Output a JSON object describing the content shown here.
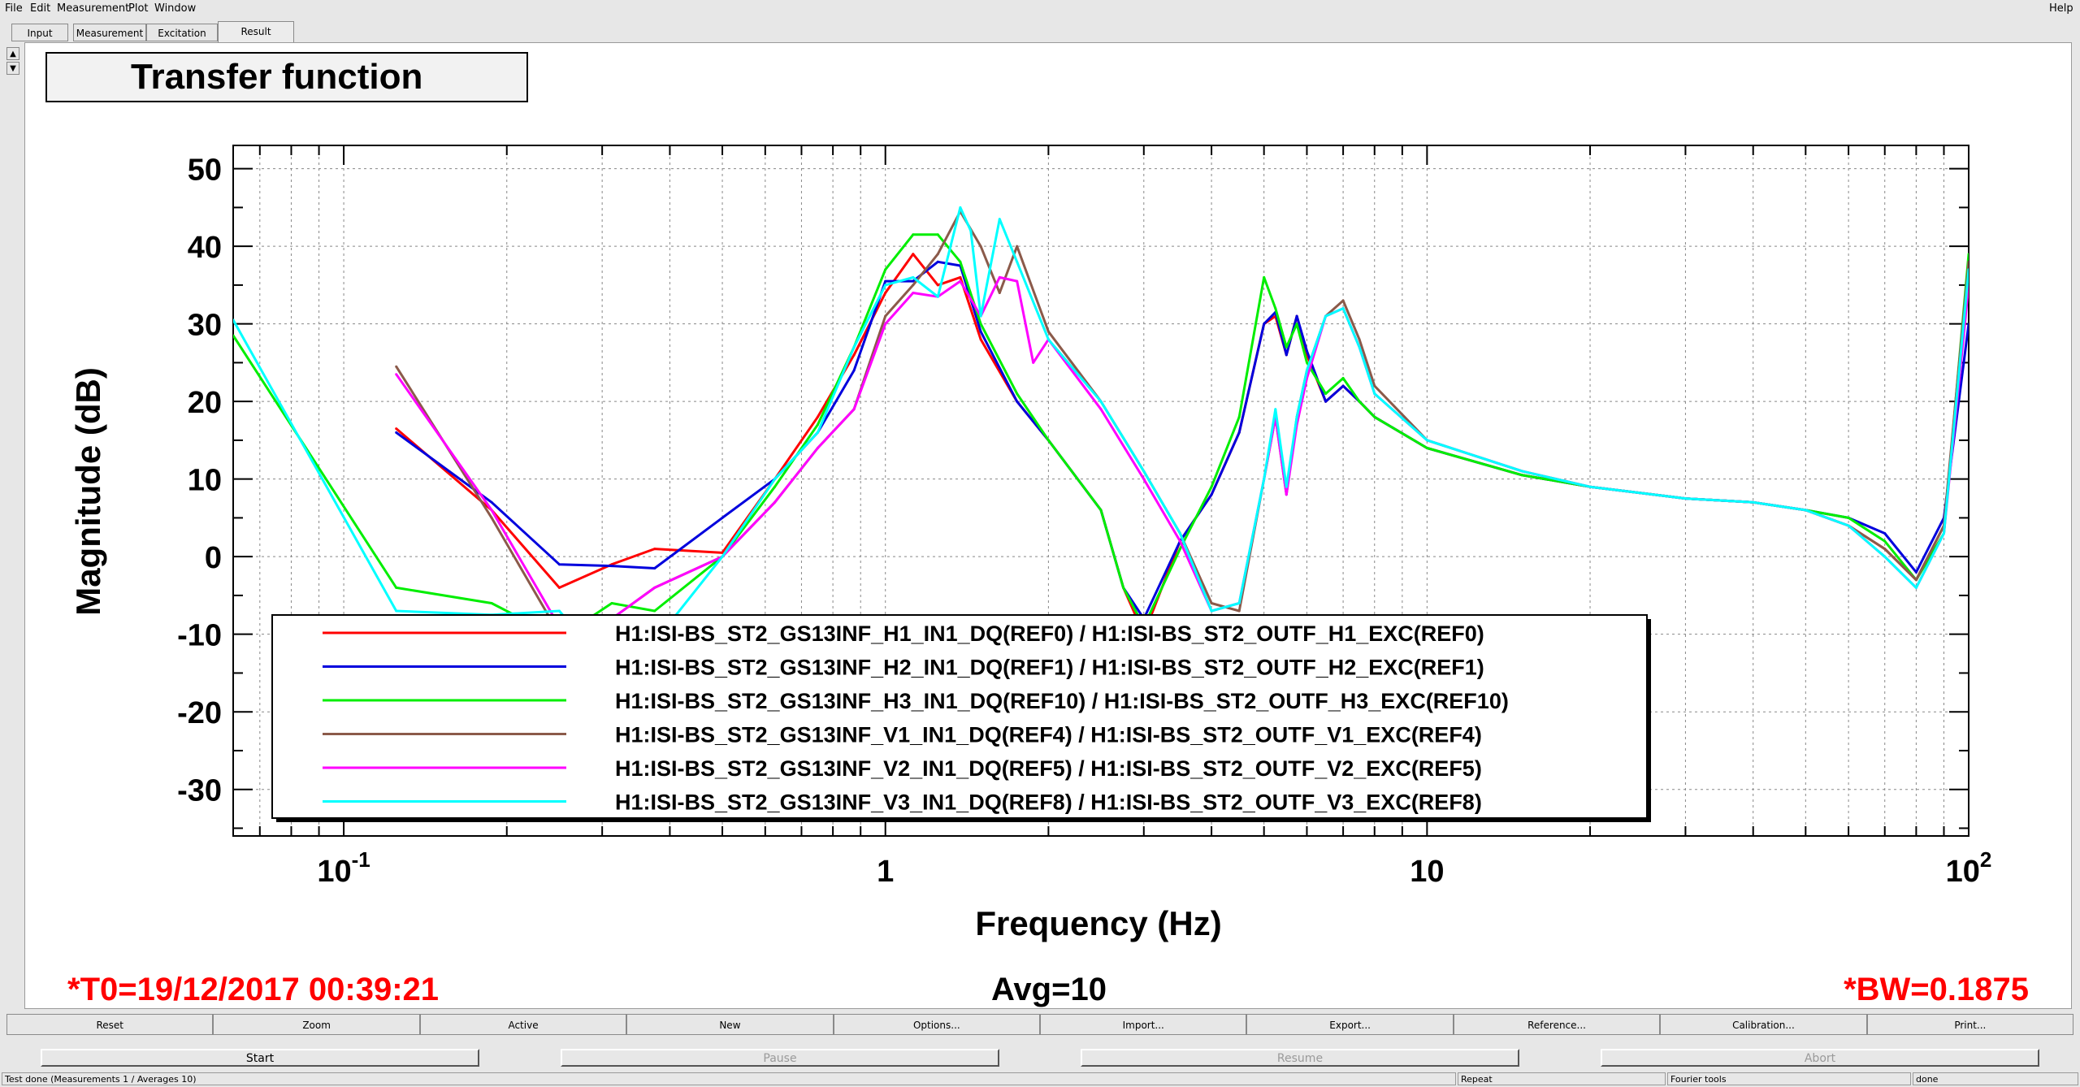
{
  "menu": [
    "File",
    "Edit",
    "Measurement",
    "Plot",
    "Window"
  ],
  "help": "Help",
  "tabs": [
    "Input",
    "Measurement",
    "Excitation",
    "Result"
  ],
  "active_tab": "Result",
  "plot": {
    "title": "Transfer function",
    "t0": "*T0=19/12/2017 00:39:21",
    "avg": "Avg=10",
    "bw": "*BW=0.1875"
  },
  "chart_data": {
    "type": "line",
    "title": "Transfer function",
    "xlabel": "Frequency (Hz)",
    "ylabel": "Magnitude (dB)",
    "xscale": "log",
    "xlim": [
      0.0625,
      100
    ],
    "ylim": [
      -36,
      53
    ],
    "xticks": [
      "10-1",
      "1",
      "10",
      "102"
    ],
    "yticks": [
      50,
      40,
      30,
      20,
      10,
      0,
      -10,
      -20,
      -30
    ],
    "grid": true,
    "legend_position": "bottom-left",
    "colors": [
      "#ff0000",
      "#0000dd",
      "#00ee00",
      "#8b5a4a",
      "#ff00ff",
      "#00ffff"
    ],
    "series": [
      {
        "name": "H1:ISI-BS_ST2_GS13INF_H1_IN1_DQ(REF0) / H1:ISI-BS_ST2_OUTF_H1_EXC(REF0)",
        "x": [
          0.125,
          0.1875,
          0.25,
          0.3125,
          0.375,
          0.5,
          0.625,
          0.75,
          0.875,
          1.0,
          1.125,
          1.25,
          1.375,
          1.5,
          1.75,
          2.0,
          2.5,
          2.75,
          3.0,
          3.5,
          4.0,
          4.5,
          5.0,
          5.25,
          5.5,
          5.75,
          6.0,
          6.5,
          7.0,
          7.5,
          8.0,
          10,
          15,
          20,
          30,
          40,
          50,
          60,
          70,
          80,
          90,
          100
        ],
        "y": [
          16.5,
          6,
          -4,
          -1,
          1,
          0.5,
          10,
          18,
          26,
          34,
          39,
          35,
          36,
          28,
          20,
          15,
          6,
          -4,
          -10,
          2,
          8,
          16,
          30,
          31,
          26,
          31,
          26,
          20,
          22,
          20,
          18,
          14,
          10.5,
          9,
          7.5,
          7,
          6,
          4,
          1,
          -3,
          4,
          36
        ]
      },
      {
        "name": "H1:ISI-BS_ST2_GS13INF_H2_IN1_DQ(REF1) / H1:ISI-BS_ST2_OUTF_H2_EXC(REF1)",
        "x": [
          0.125,
          0.1875,
          0.25,
          0.3125,
          0.375,
          0.5,
          0.625,
          0.75,
          0.875,
          1.0,
          1.125,
          1.25,
          1.375,
          1.5,
          1.75,
          2.0,
          2.5,
          2.75,
          3.0,
          3.5,
          4.0,
          4.5,
          5.0,
          5.25,
          5.5,
          5.75,
          6.0,
          6.5,
          7.0,
          7.5,
          8.0,
          10,
          15,
          20,
          30,
          40,
          50,
          60,
          70,
          80,
          90,
          100
        ],
        "y": [
          16,
          7,
          -1,
          -1.2,
          -1.5,
          5,
          10,
          16,
          24,
          35.5,
          35.5,
          38,
          37.5,
          29,
          20,
          15,
          6,
          -4,
          -8,
          2,
          8,
          16,
          30,
          31.5,
          26,
          31,
          26.5,
          20,
          22,
          20,
          18,
          14,
          10.5,
          9,
          7.5,
          7,
          6,
          5,
          3,
          -2,
          5,
          30
        ]
      },
      {
        "name": "H1:ISI-BS_ST2_GS13INF_H3_IN1_DQ(REF10) / H1:ISI-BS_ST2_OUTF_H3_EXC(REF10)",
        "x": [
          0.0625,
          0.125,
          0.1875,
          0.25,
          0.3125,
          0.375,
          0.5,
          0.625,
          0.75,
          0.875,
          1.0,
          1.125,
          1.25,
          1.375,
          1.5,
          1.75,
          2.0,
          2.5,
          2.75,
          3.0,
          3.5,
          4.0,
          4.5,
          5.0,
          5.25,
          5.5,
          5.75,
          6.0,
          6.5,
          7.0,
          7.5,
          8.0,
          10,
          15,
          20,
          30,
          40,
          50,
          60,
          70,
          80,
          90,
          100
        ],
        "y": [
          28.5,
          -4,
          -6,
          -10.5,
          -6,
          -7,
          0,
          9,
          17,
          27,
          37,
          41.5,
          41.5,
          38,
          30,
          21,
          15,
          6,
          -4,
          -9,
          1,
          9,
          18,
          36,
          32,
          27,
          30,
          25,
          21,
          23,
          20,
          18,
          14,
          10.5,
          9,
          7.5,
          7,
          6,
          5,
          2,
          -3,
          3,
          39
        ]
      },
      {
        "name": "H1:ISI-BS_ST2_GS13INF_V1_IN1_DQ(REF4) / H1:ISI-BS_ST2_OUTF_V1_EXC(REF4)",
        "x": [
          0.125,
          0.1875,
          0.25,
          0.3125,
          0.375,
          0.5,
          0.625,
          0.75,
          0.875,
          1.0,
          1.125,
          1.25,
          1.375,
          1.5,
          1.625,
          1.75,
          2.0,
          2.5,
          3.0,
          3.5,
          4.0,
          4.5,
          5.0,
          5.25,
          5.5,
          5.75,
          6.0,
          6.5,
          7.0,
          7.5,
          8.0,
          10,
          15,
          20,
          30,
          40,
          50,
          60,
          70,
          80,
          90,
          100
        ],
        "y": [
          24.5,
          5,
          -10,
          -8,
          -4,
          0,
          7,
          14,
          19,
          31,
          35,
          39,
          44.5,
          40,
          34,
          40,
          29,
          20,
          11,
          3,
          -6,
          -7,
          10,
          18,
          8,
          18,
          24,
          31,
          33,
          28,
          22,
          15,
          11,
          9,
          7.5,
          7,
          6,
          4,
          1,
          -3,
          4,
          38
        ]
      },
      {
        "name": "H1:ISI-BS_ST2_GS13INF_V2_IN1_DQ(REF5) / H1:ISI-BS_ST2_OUTF_V2_EXC(REF5)",
        "x": [
          0.125,
          0.1875,
          0.25,
          0.3125,
          0.375,
          0.5,
          0.625,
          0.75,
          0.875,
          1.0,
          1.125,
          1.25,
          1.375,
          1.5,
          1.625,
          1.75,
          1.875,
          2.0,
          2.5,
          3.0,
          3.5,
          4.0,
          4.5,
          5.0,
          5.25,
          5.5,
          5.75,
          6.0,
          6.5,
          7.0,
          7.5,
          8.0,
          10,
          15,
          20,
          30,
          40,
          50,
          60,
          70,
          80,
          90,
          100
        ],
        "y": [
          23.5,
          6,
          -9,
          -8,
          -4,
          0,
          7,
          14,
          19,
          30,
          34,
          33.5,
          35.5,
          31,
          36,
          35.5,
          25,
          28,
          19,
          10,
          2,
          -7,
          -6,
          10,
          18,
          8,
          17,
          23,
          31,
          32,
          27,
          21,
          15,
          11,
          9,
          7.5,
          7,
          6,
          4,
          0,
          -4,
          3,
          35
        ]
      },
      {
        "name": "H1:ISI-BS_ST2_GS13INF_V3_IN1_DQ(REF8) / H1:ISI-BS_ST2_OUTF_V3_EXC(REF8)",
        "x": [
          0.0625,
          0.125,
          0.1875,
          0.25,
          0.3125,
          0.375,
          0.5,
          0.625,
          0.75,
          0.875,
          1.0,
          1.125,
          1.25,
          1.375,
          1.4375,
          1.5,
          1.625,
          1.75,
          2.0,
          2.5,
          3.0,
          3.5,
          4.0,
          4.5,
          5.0,
          5.25,
          5.5,
          5.75,
          6.0,
          6.5,
          7.0,
          7.5,
          8.0,
          10,
          15,
          20,
          30,
          40,
          50,
          60,
          70,
          80,
          90,
          100
        ],
        "y": [
          30.5,
          -7,
          -7.5,
          -7,
          -15,
          -11,
          0,
          10,
          16,
          27,
          35,
          36,
          33.5,
          45,
          42,
          31,
          43.5,
          38,
          28,
          20,
          11,
          3,
          -7,
          -6,
          10,
          19,
          9,
          18,
          24,
          31,
          32,
          27,
          21,
          15,
          11,
          9,
          7.5,
          7,
          6,
          4,
          0,
          -4,
          3,
          37
        ]
      }
    ]
  },
  "buttons": [
    "Reset",
    "Zoom",
    "Active",
    "New",
    "Options...",
    "Import...",
    "Export...",
    "Reference...",
    "Calibration...",
    "Print..."
  ],
  "controls": {
    "start": "Start",
    "pause": "Pause",
    "resume": "Resume",
    "abort": "Abort"
  },
  "status": {
    "message": "Test done (Measurements 1 / Averages 10)",
    "repeat": "Repeat",
    "fourier": "Fourier tools",
    "done": "done"
  }
}
